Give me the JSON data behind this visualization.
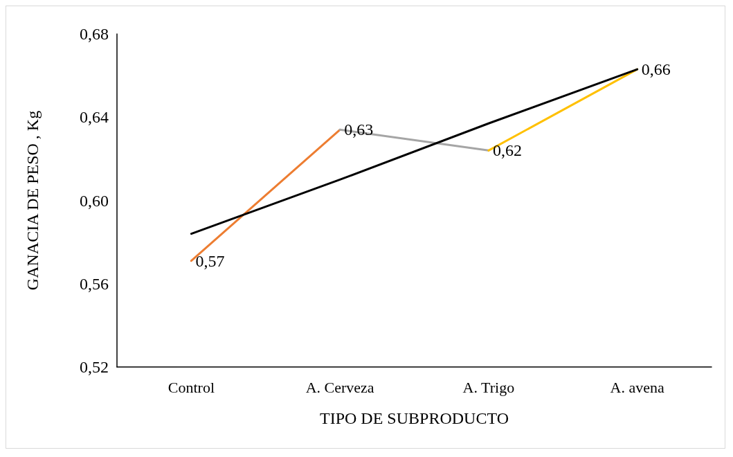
{
  "chart_data": {
    "type": "line",
    "xlabel": "TIPO DE SUBPRODUCTO",
    "ylabel": "GANACIA DE PESO , Kg",
    "categories": [
      "Control",
      "A. Cerveza",
      "A. Trigo",
      "A. avena"
    ],
    "series": [
      {
        "color": "#ed7d31",
        "values": [
          0.571,
          0.634,
          null,
          null
        ],
        "value_labels": [
          "0,57",
          null,
          null,
          null
        ]
      },
      {
        "color": "#a5a5a5",
        "values": [
          null,
          0.634,
          0.624,
          null
        ],
        "value_labels": [
          null,
          "0,63",
          null,
          null
        ]
      },
      {
        "color": "#ffc000",
        "values": [
          null,
          null,
          0.624,
          0.663
        ],
        "value_labels": [
          null,
          null,
          "0,62",
          "0,66"
        ]
      },
      {
        "color": "#000000",
        "values": [
          0.584,
          0.61,
          0.637,
          0.663
        ]
      }
    ],
    "ylim": [
      0.52,
      0.68
    ],
    "yticks": [
      {
        "value": 0.52,
        "label": "0,52"
      },
      {
        "value": 0.56,
        "label": "0,56"
      },
      {
        "value": 0.6,
        "label": "0,60"
      },
      {
        "value": 0.64,
        "label": "0,64"
      },
      {
        "value": 0.68,
        "label": "0,68"
      }
    ],
    "grid": false,
    "marker": "none",
    "line_style": "solid"
  }
}
